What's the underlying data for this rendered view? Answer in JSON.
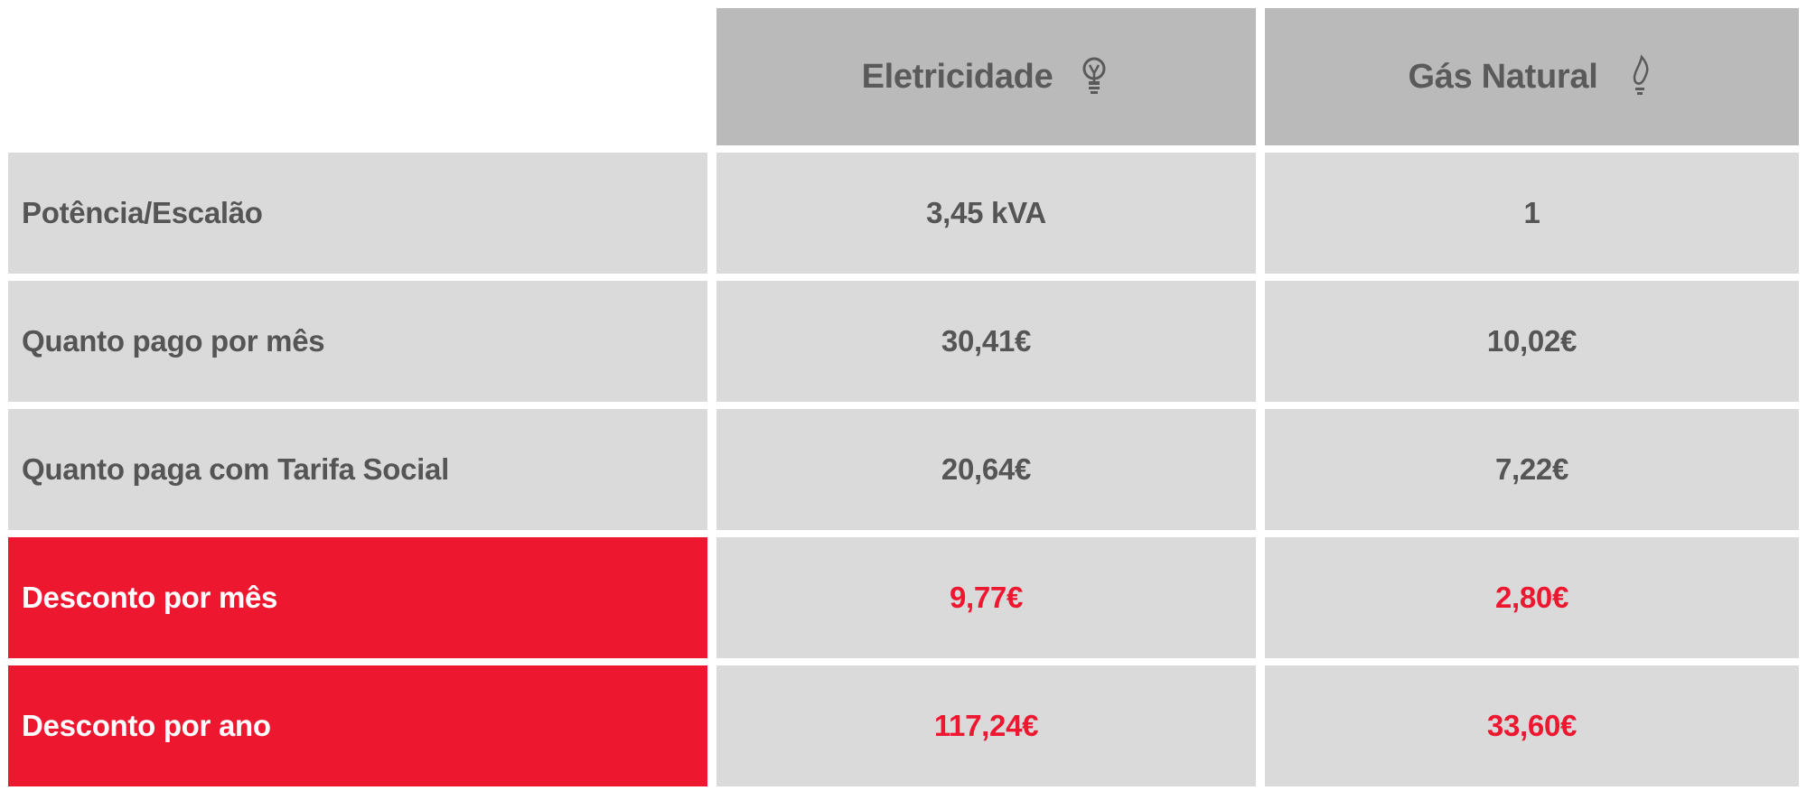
{
  "columns": [
    {
      "label": "Eletricidade",
      "icon": "lightbulb-icon"
    },
    {
      "label": "Gás Natural",
      "icon": "flame-icon"
    }
  ],
  "rows": [
    {
      "label": "Potência/Escalão",
      "electricity": "3,45 kVA",
      "gas": "1",
      "highlight": false
    },
    {
      "label": "Quanto pago por mês",
      "electricity": "30,41€",
      "gas": "10,02€",
      "highlight": false
    },
    {
      "label": "Quanto paga com Tarifa Social",
      "electricity": "20,64€",
      "gas": "7,22€",
      "highlight": false
    },
    {
      "label": "Desconto por mês",
      "electricity": "9,77€",
      "gas": "2,80€",
      "highlight": true
    },
    {
      "label": "Desconto por ano",
      "electricity": "117,24€",
      "gas": "33,60€",
      "highlight": true
    }
  ],
  "colors": {
    "header_bg": "#bababa",
    "cell_bg": "#dadada",
    "text": "#555555",
    "accent": "#ee1730"
  }
}
